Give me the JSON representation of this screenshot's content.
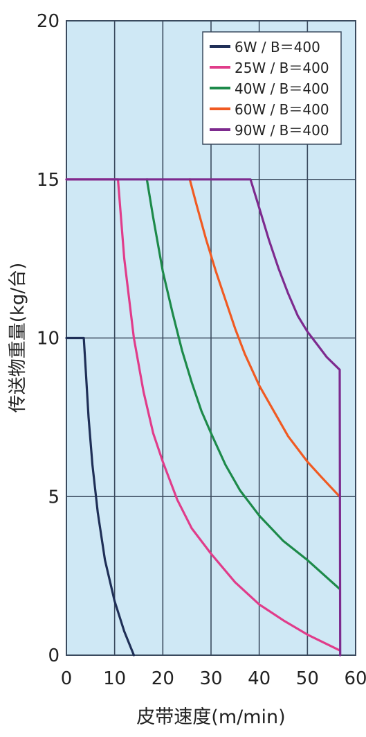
{
  "chart_data": {
    "type": "line",
    "xlabel": "皮带速度(m/min)",
    "ylabel": "传送物重量(kg/台)",
    "xlim": [
      0,
      60
    ],
    "ylim": [
      0,
      20
    ],
    "x_ticks": [
      0,
      10,
      20,
      30,
      40,
      50,
      60
    ],
    "y_ticks": [
      0,
      5,
      10,
      15,
      20
    ],
    "grid": true,
    "legend_position": "top-right",
    "background_color": "#cfe8f5",
    "grid_color": "#3a4a5e",
    "series": [
      {
        "name": "6W / B＝400",
        "color": "#1f2f57",
        "points": [
          [
            0,
            10
          ],
          [
            3.6,
            10
          ],
          [
            4,
            9
          ],
          [
            4.6,
            7.5
          ],
          [
            5.4,
            6
          ],
          [
            6.5,
            4.5
          ],
          [
            8,
            3
          ],
          [
            10,
            1.7
          ],
          [
            12,
            0.75
          ],
          [
            14,
            0
          ]
        ]
      },
      {
        "name": "25W / B＝400",
        "color": "#e03c8a",
        "points": [
          [
            0,
            15
          ],
          [
            10.7,
            15
          ],
          [
            12,
            12.5
          ],
          [
            14,
            10
          ],
          [
            16,
            8.3
          ],
          [
            18,
            7
          ],
          [
            20,
            6.1
          ],
          [
            23,
            4.9
          ],
          [
            26,
            4
          ],
          [
            30,
            3.2
          ],
          [
            35,
            2.3
          ],
          [
            40,
            1.6
          ],
          [
            45,
            1.1
          ],
          [
            50,
            0.65
          ],
          [
            56.7,
            0.15
          ]
        ]
      },
      {
        "name": "40W / B＝400",
        "color": "#1d8a4a",
        "points": [
          [
            16.7,
            15
          ],
          [
            18,
            13.8
          ],
          [
            20,
            12.1
          ],
          [
            22,
            10.8
          ],
          [
            24,
            9.6
          ],
          [
            26,
            8.6
          ],
          [
            28,
            7.7
          ],
          [
            30,
            7
          ],
          [
            33,
            6
          ],
          [
            36,
            5.2
          ],
          [
            40,
            4.4
          ],
          [
            45,
            3.6
          ],
          [
            50,
            3
          ],
          [
            56.6,
            2.1
          ]
        ]
      },
      {
        "name": "60W / B＝400",
        "color": "#f05a22",
        "points": [
          [
            25.6,
            15
          ],
          [
            27,
            14.2
          ],
          [
            29,
            13.1
          ],
          [
            31,
            12.1
          ],
          [
            33,
            11.2
          ],
          [
            35,
            10.3
          ],
          [
            37,
            9.5
          ],
          [
            40,
            8.5
          ],
          [
            43,
            7.7
          ],
          [
            46,
            6.9
          ],
          [
            50,
            6.1
          ],
          [
            53,
            5.6
          ],
          [
            56.7,
            5
          ]
        ]
      },
      {
        "name": "90W / B＝400",
        "color": "#7d2a8e",
        "points": [
          [
            0,
            15
          ],
          [
            38.2,
            15
          ],
          [
            40,
            14.1
          ],
          [
            42,
            13.1
          ],
          [
            44,
            12.2
          ],
          [
            46,
            11.4
          ],
          [
            48,
            10.7
          ],
          [
            50,
            10.2
          ],
          [
            52,
            9.8
          ],
          [
            54,
            9.4
          ],
          [
            56.7,
            9
          ],
          [
            56.8,
            0
          ]
        ]
      }
    ]
  }
}
